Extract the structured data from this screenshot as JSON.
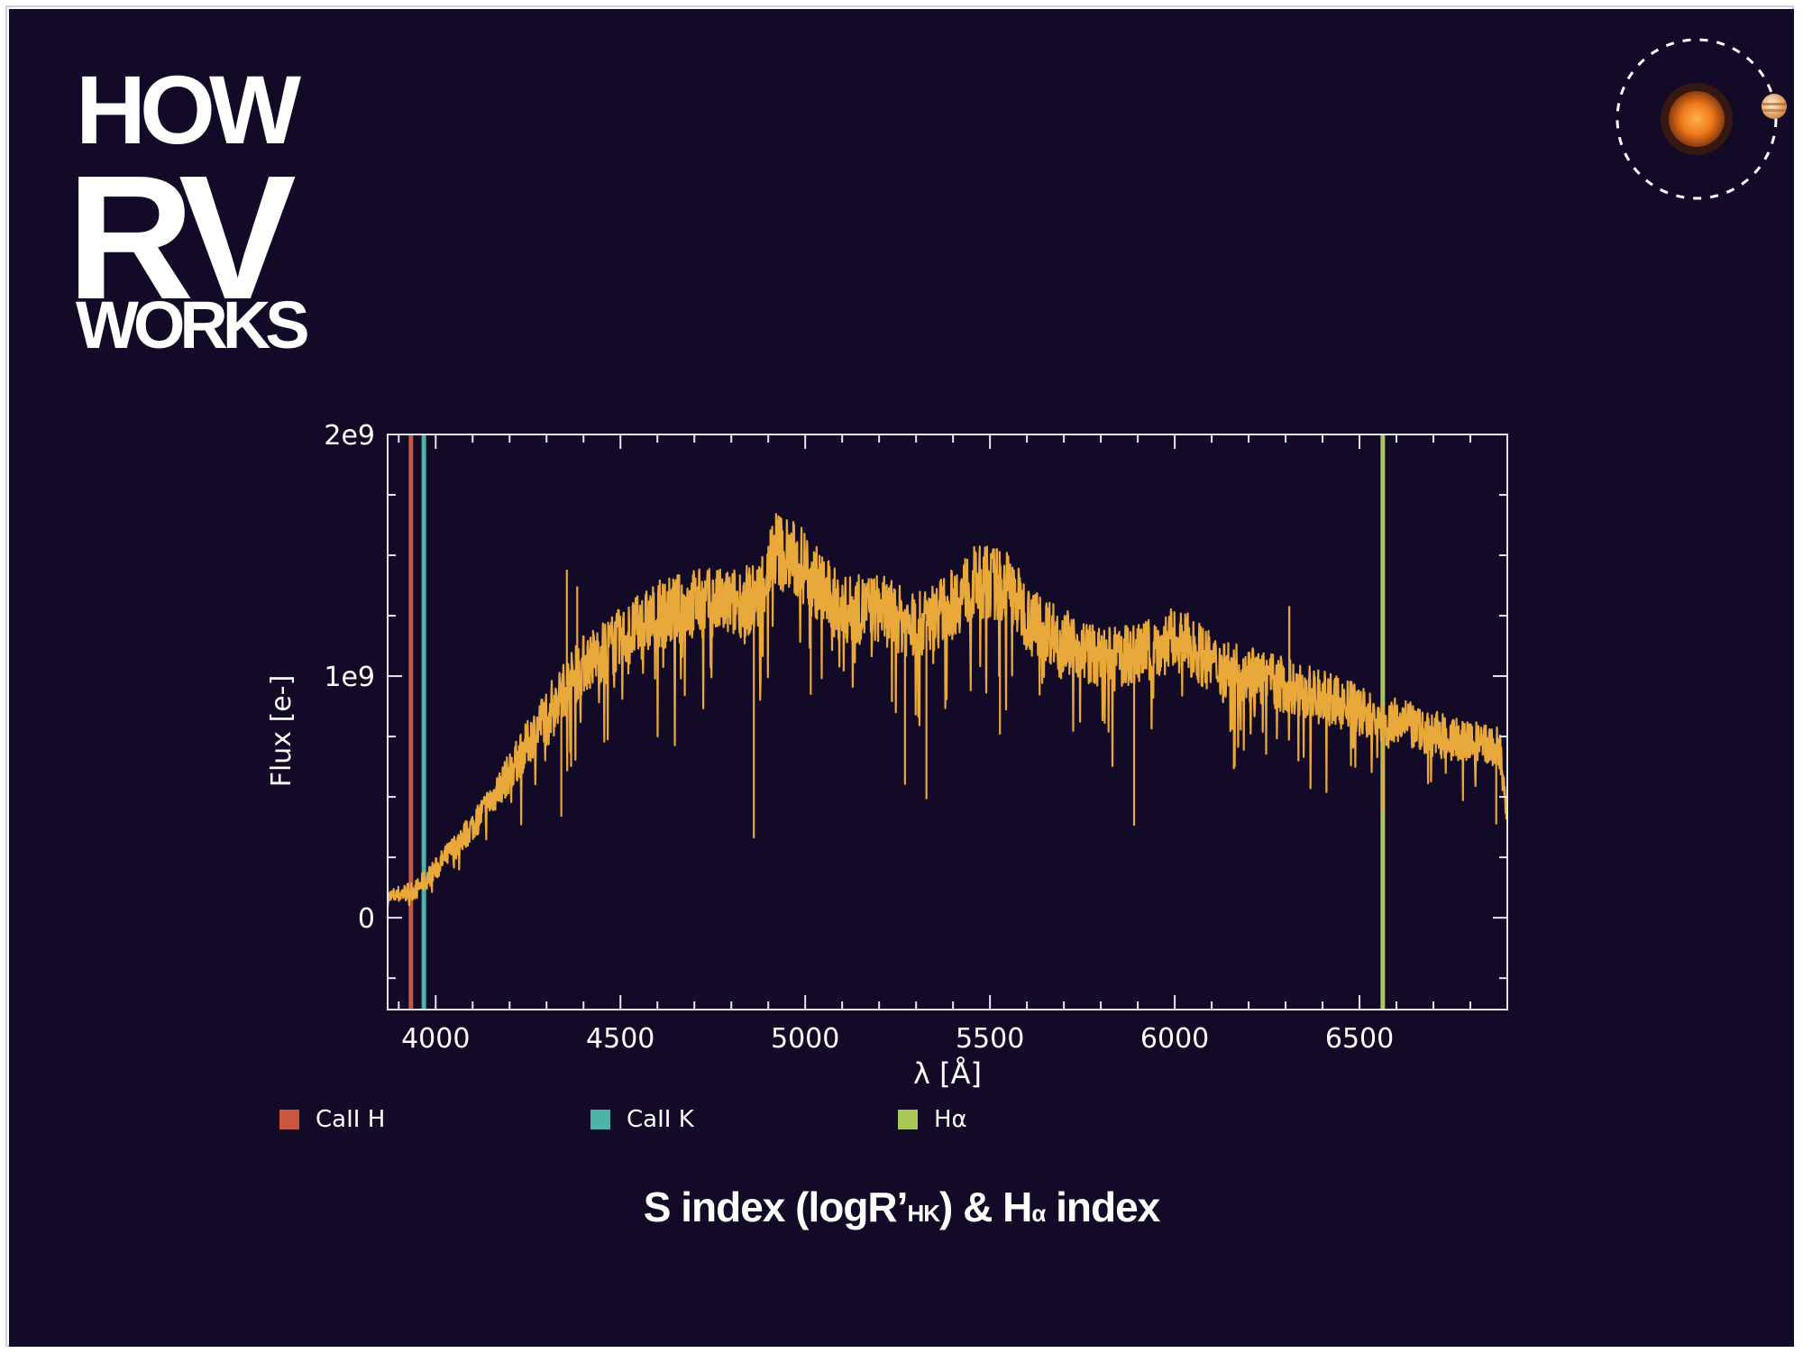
{
  "logo": {
    "line1": "HOW",
    "line2": "RV",
    "line3": "WORKS"
  },
  "caption": {
    "prefix": "S index (logR’",
    "sub": "HK",
    "middle": ") & H",
    "alpha": "α",
    "suffix": " index"
  },
  "colors": {
    "background": "#130a28",
    "spectrum": "#e8a83a",
    "ca_h": "#c8573f",
    "ca_k": "#4fb3a5",
    "h_alpha": "#a8c85a",
    "star": "#f07a1a"
  },
  "chart_data": {
    "type": "line",
    "title": "",
    "xlabel": "λ [Å]",
    "ylabel": "Flux [e-]",
    "xlim": [
      3870,
      6900
    ],
    "ylim": [
      -380000000.0,
      2000000000.0
    ],
    "x_ticks": [
      4000,
      4500,
      5000,
      5500,
      6000,
      6500
    ],
    "x_tick_labels": [
      "4000",
      "4500",
      "5000",
      "5500",
      "6000",
      "6500"
    ],
    "y_ticks": [
      0,
      1000000000,
      2000000000
    ],
    "y_tick_labels": [
      "0",
      "1e9",
      "2e9"
    ],
    "grid": false,
    "legend_position": "bottom",
    "series": [
      {
        "type": "line",
        "x": [
          3870,
          3950,
          4000,
          4100,
          4200,
          4300,
          4350,
          4400,
          4500,
          4600,
          4700,
          4800,
          4870,
          4920,
          5000,
          5050,
          5100,
          5200,
          5300,
          5400,
          5450,
          5500,
          5550,
          5600,
          5700,
          5800,
          5900,
          6000,
          6050,
          6100,
          6200,
          6300,
          6400,
          6500,
          6560,
          6600,
          6700,
          6800,
          6880,
          6900
        ],
        "y": [
          80000000,
          120000000,
          200000000,
          380000000,
          600000000,
          850000000,
          950000000,
          1050000000,
          1150000000,
          1250000000,
          1300000000,
          1300000000,
          1320000000,
          1530000000,
          1450000000,
          1350000000,
          1270000000,
          1280000000,
          1200000000,
          1300000000,
          1380000000,
          1390000000,
          1370000000,
          1250000000,
          1150000000,
          1070000000,
          1090000000,
          1150000000,
          1120000000,
          1050000000,
          1010000000,
          960000000,
          910000000,
          860000000,
          800000000,
          810000000,
          760000000,
          720000000,
          700000000,
          380000000
        ]
      },
      {
        "name": "CaII H",
        "type": "vline",
        "x": 3933
      },
      {
        "name": "CaII K",
        "type": "vline",
        "x": 3968
      },
      {
        "name": "Hα",
        "type": "vline",
        "x": 6563
      }
    ],
    "legend": [
      "CaII H",
      "CaII K",
      "Hα"
    ]
  }
}
